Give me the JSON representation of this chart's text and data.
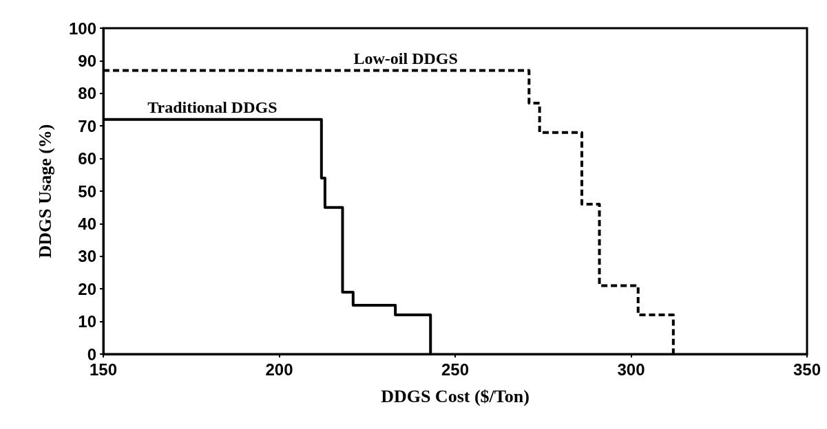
{
  "chart_data": {
    "type": "step",
    "xlabel": "DDGS Cost ($/Ton)",
    "ylabel": "DDGS Usage (%)",
    "xlim": [
      150,
      350
    ],
    "xticks": [
      150,
      200,
      250,
      300,
      350
    ],
    "ylim": [
      0,
      100
    ],
    "yticks": [
      0,
      10,
      20,
      30,
      40,
      50,
      60,
      70,
      80,
      90,
      100
    ],
    "grid": false,
    "marker": "none",
    "series": [
      {
        "name": "Traditional DDGS",
        "color": "#000000",
        "line_style": "solid",
        "x": [
          150,
          212,
          213,
          218,
          221,
          233,
          243
        ],
        "values": [
          72,
          54,
          45,
          19,
          15,
          12,
          0
        ]
      },
      {
        "name": "Low-oil DDGS",
        "color": "#000000",
        "line_style": "dashed",
        "x": [
          150,
          271,
          274,
          286,
          291,
          302,
          312
        ],
        "values": [
          87,
          77,
          68,
          46,
          21,
          12,
          0
        ]
      }
    ]
  }
}
